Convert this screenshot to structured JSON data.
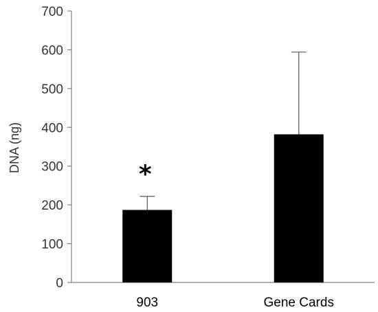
{
  "chart_data": {
    "type": "bar",
    "title": "",
    "xlabel": "",
    "ylabel": "DNA (ng)",
    "categories": [
      "903",
      "Gene Cards"
    ],
    "series": [
      {
        "values": [
          187,
          382
        ],
        "errors": [
          35,
          212
        ],
        "color": "#000000"
      }
    ],
    "ylim": [
      0,
      700
    ],
    "yticks": [
      0,
      100,
      200,
      300,
      400,
      500,
      600,
      700
    ],
    "annotations": [
      {
        "category": "903",
        "text": "*"
      }
    ],
    "grid": false,
    "legend": "none"
  }
}
